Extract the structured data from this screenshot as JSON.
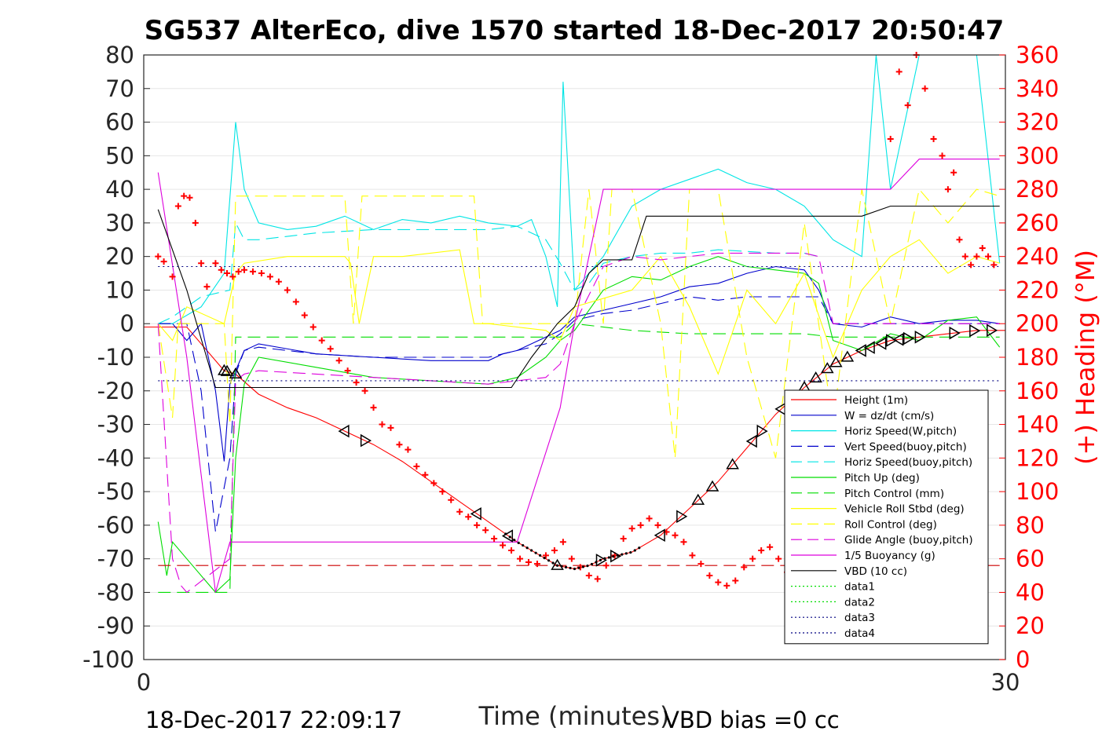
{
  "chart_data": {
    "type": "line",
    "title": "SG537 AlterEco, dive 1570 started 18-Dec-2017 20:50:47",
    "xlabel": "Time (minutes)",
    "ylabel_right": "(+) Heading (°M)",
    "xlim": [
      0,
      30
    ],
    "ylim": [
      -100,
      80
    ],
    "ylim_right": [
      0,
      360
    ],
    "x_ticks": [
      "0",
      "30"
    ],
    "y_ticks": [
      "80",
      "70",
      "60",
      "50",
      "40",
      "30",
      "20",
      "10",
      "0",
      "-10",
      "-20",
      "-30",
      "-40",
      "-50",
      "-60",
      "-70",
      "-80",
      "-90",
      "-100"
    ],
    "y_ticks_right": [
      "360",
      "340",
      "320",
      "300",
      "280",
      "260",
      "240",
      "220",
      "200",
      "180",
      "160",
      "140",
      "120",
      "100",
      "80",
      "60",
      "40",
      "20",
      "0"
    ],
    "grid": true,
    "legend_position": "bottom-right",
    "footer_left": "18-Dec-2017 22:09:17",
    "footer_right": "VBD bias =0 cc",
    "colors": {
      "height": "#ff0000",
      "w": "#0000cc",
      "horiz_speed": "#00e5e5",
      "vert_speed": "#0000cc",
      "horiz_speed_buoy": "#00e5e5",
      "pitch_up": "#00dd00",
      "pitch_control": "#00dd00",
      "roll": "#ffff00",
      "roll_control": "#ffff00",
      "glide_angle": "#dd00dd",
      "buoyancy": "#dd00dd",
      "vbd": "#000000",
      "heading": "#ff0000"
    },
    "legend": [
      {
        "label": "Height (1m)",
        "color": "#ff0000",
        "dash": "solid"
      },
      {
        "label": "W = dz/dt (cm/s)",
        "color": "#0000cc",
        "dash": "solid"
      },
      {
        "label": "Horiz Speed(W,pitch)",
        "color": "#00e5e5",
        "dash": "solid"
      },
      {
        "label": "Vert Speed(buoy,pitch)",
        "color": "#0000cc",
        "dash": "dashed"
      },
      {
        "label": "Horiz Speed(buoy,pitch)",
        "color": "#00e5e5",
        "dash": "dashed"
      },
      {
        "label": "Pitch Up (deg)",
        "color": "#00dd00",
        "dash": "solid"
      },
      {
        "label": "Pitch Control (mm)",
        "color": "#00dd00",
        "dash": "dashed"
      },
      {
        "label": "Vehicle Roll Stbd (deg)",
        "color": "#ffff00",
        "dash": "solid"
      },
      {
        "label": "Roll Control (deg)",
        "color": "#ffff00",
        "dash": "dashed"
      },
      {
        "label": "Glide Angle (buoy,pitch)",
        "color": "#dd00dd",
        "dash": "dashed"
      },
      {
        "label": "1/5 Buoyancy (g)",
        "color": "#dd00dd",
        "dash": "solid"
      },
      {
        "label": "VBD (10 cc)",
        "color": "#000000",
        "dash": "solid"
      },
      {
        "label": "data1",
        "color": "#00dd00",
        "dash": "dotted"
      },
      {
        "label": "data2",
        "color": "#00dd00",
        "dash": "dotted"
      },
      {
        "label": "data3",
        "color": "#000080",
        "dash": "dotted"
      },
      {
        "label": "data4",
        "color": "#000080",
        "dash": "dotted"
      }
    ],
    "series": [
      {
        "key": "height",
        "style": "solid",
        "color": "#ff0000",
        "x": [
          0,
          1.5,
          2.8,
          3.2,
          4,
          5,
          6,
          7,
          8,
          9,
          10,
          11,
          12,
          13,
          14,
          14.4,
          15,
          15.5,
          16,
          17,
          18,
          19,
          20,
          21,
          22,
          23,
          24,
          25,
          26,
          27,
          28,
          29,
          30
        ],
        "y": [
          -1,
          -1,
          -14,
          -15,
          -21,
          -25,
          -28,
          -32,
          -36,
          -41,
          -47,
          -53,
          -59,
          -65,
          -70,
          -72,
          -73,
          -72,
          -70,
          -68,
          -63,
          -55,
          -47,
          -37,
          -27,
          -19,
          -12,
          -8,
          -5,
          -4,
          -3,
          -2,
          -2
        ]
      },
      {
        "key": "w",
        "style": "solid",
        "color": "#0000cc",
        "x": [
          0.5,
          1,
          1.5,
          2,
          2.5,
          2.8,
          3,
          3.2,
          3.5,
          4,
          6,
          8,
          10,
          12,
          12.5,
          13,
          14.5,
          15,
          16,
          17,
          18,
          19,
          20,
          21,
          22,
          23,
          23.5,
          24,
          25,
          26,
          27,
          28,
          29,
          29.8
        ],
        "y": [
          0,
          0,
          -5,
          0,
          -20,
          -41,
          -18,
          -14,
          -8,
          -6,
          -9,
          -10,
          -11,
          -11,
          -9,
          -8,
          -2,
          2,
          4,
          6,
          8,
          11,
          12,
          15,
          17,
          16,
          10,
          0,
          -1,
          2,
          0,
          1,
          1,
          0
        ]
      },
      {
        "key": "horiz_speed",
        "style": "solid",
        "color": "#00e5e5",
        "x": [
          0.5,
          1,
          2,
          2.8,
          3.2,
          3.5,
          4,
          5,
          6,
          7,
          8,
          9,
          10,
          11,
          12,
          13,
          13.5,
          14,
          14.4,
          14.6,
          15,
          15.5,
          16,
          17,
          18,
          19,
          20,
          21,
          22,
          23,
          23.5,
          24,
          25,
          25.5,
          26,
          27,
          28,
          29,
          29.8
        ],
        "y": [
          0,
          0,
          5,
          15,
          60,
          40,
          30,
          28,
          29,
          32,
          28,
          31,
          30,
          32,
          30,
          29,
          31,
          20,
          5,
          72,
          10,
          15,
          20,
          35,
          40,
          43,
          46,
          42,
          40,
          35,
          30,
          25,
          20,
          80,
          40,
          80,
          80,
          80,
          18
        ]
      },
      {
        "key": "vert_speed",
        "style": "dashed",
        "color": "#0000cc",
        "x": [
          0.5,
          1.5,
          2,
          2.5,
          3,
          3.2,
          3.5,
          4,
          6,
          8,
          10,
          12,
          13,
          14,
          14.5,
          15,
          16,
          17,
          18,
          19,
          20,
          21,
          23,
          23.5,
          24,
          29.8
        ],
        "y": [
          0,
          0,
          -20,
          -62,
          -40,
          -15,
          -8,
          -7,
          -9,
          -10,
          -10,
          -10,
          -8,
          -6,
          -3,
          1,
          3,
          4,
          6,
          8,
          7,
          8,
          8,
          8,
          0,
          0
        ]
      },
      {
        "key": "horiz_speed_buoy",
        "style": "dashed",
        "color": "#00e5e5",
        "x": [
          0.5,
          1,
          2,
          3,
          3.2,
          3.5,
          4,
          6,
          8,
          10,
          12,
          13,
          14,
          14.5,
          15,
          15.5,
          16,
          17,
          18,
          19,
          20,
          22,
          23,
          23.5
        ],
        "y": [
          0,
          2,
          8,
          10,
          30,
          25,
          25,
          27,
          28,
          28,
          28,
          29,
          25,
          18,
          10,
          12,
          18,
          20,
          21,
          21,
          22,
          21,
          21,
          20
        ]
      },
      {
        "key": "pitch_up",
        "style": "solid",
        "color": "#00dd00",
        "x": [
          0.5,
          0.8,
          1,
          1.5,
          2,
          2.5,
          3,
          3.2,
          3.5,
          4,
          6,
          8,
          10,
          12,
          13,
          14,
          14.5,
          15,
          16,
          17,
          18,
          19,
          20,
          21,
          22,
          23,
          23.5,
          24,
          25,
          26,
          27,
          28,
          29,
          29.8
        ],
        "y": [
          -59,
          -75,
          -65,
          -70,
          -75,
          -80,
          -76,
          -40,
          -18,
          -10,
          -13,
          -16,
          -17,
          -18,
          -16,
          -10,
          -5,
          -2,
          10,
          14,
          13,
          17,
          20,
          17,
          16,
          15,
          12,
          -5,
          -8,
          -3,
          -5,
          1,
          2,
          -7
        ]
      },
      {
        "key": "pitch_control",
        "style": "dashed",
        "color": "#00dd00",
        "x": [
          0.5,
          3,
          3.2,
          8,
          14,
          14.5,
          15,
          17,
          19,
          21,
          23,
          24,
          29.8
        ],
        "y": [
          -80,
          -80,
          -4,
          -4,
          -4,
          -4,
          0,
          -2,
          -3,
          -3,
          -3,
          -4,
          -4
        ]
      },
      {
        "key": "roll",
        "style": "solid",
        "color": "#ffff00",
        "x": [
          0.5,
          1,
          1.5,
          2.8,
          3.2,
          3.5,
          5,
          7,
          7.2,
          7.5,
          8,
          9,
          11,
          11.5,
          12,
          14,
          14.5,
          15,
          17,
          18,
          19,
          20,
          21,
          22,
          23,
          24,
          25,
          26,
          27,
          28,
          29,
          29.8
        ],
        "y": [
          0,
          -5,
          5,
          0,
          15,
          18,
          20,
          20,
          18,
          0,
          20,
          20,
          22,
          0,
          0,
          -2,
          -5,
          5,
          10,
          20,
          5,
          -15,
          10,
          0,
          15,
          -10,
          10,
          20,
          25,
          15,
          20,
          18
        ]
      },
      {
        "key": "roll_control",
        "style": "dashed",
        "color": "#ffff00",
        "x": [
          0.5,
          1,
          1.2,
          2.8,
          3,
          3.2,
          7,
          7.3,
          7.6,
          8,
          11.5,
          11.8,
          12,
          15,
          15.5,
          16,
          16.3,
          17,
          18,
          18.5,
          19,
          20,
          21,
          22,
          23,
          24,
          25,
          26,
          27,
          28,
          29,
          29.8
        ],
        "y": [
          0,
          -28,
          0,
          0,
          -30,
          38,
          38,
          0,
          38,
          38,
          38,
          0,
          0,
          0,
          40,
          0,
          40,
          40,
          0,
          -40,
          40,
          40,
          -10,
          -40,
          30,
          -30,
          40,
          0,
          40,
          30,
          40,
          38
        ]
      },
      {
        "key": "glide_angle",
        "style": "dashed",
        "color": "#dd00dd",
        "x": [
          0.5,
          1,
          1.3,
          1.5,
          3,
          3.2,
          3.5,
          4,
          6,
          8,
          10,
          12,
          13,
          14,
          14.5,
          15,
          16,
          17,
          18,
          19,
          20,
          22,
          23,
          23.5,
          24,
          29.8
        ],
        "y": [
          0,
          -70,
          -78,
          -80,
          -70,
          -17,
          -15,
          -14,
          -15,
          -16,
          -17,
          -18,
          -17,
          -16,
          -12,
          0,
          17,
          20,
          19,
          20,
          21,
          21,
          21,
          20,
          0,
          0
        ]
      },
      {
        "key": "buoyancy",
        "style": "solid",
        "color": "#dd00dd",
        "x": [
          0.5,
          1.5,
          2.5,
          3,
          3.2,
          5,
          10,
          13,
          14.5,
          15,
          16,
          16.5,
          17,
          18,
          20,
          22,
          24,
          25,
          26,
          27,
          28,
          29,
          29.8
        ],
        "y": [
          45,
          -10,
          -80,
          -65,
          -65,
          -65,
          -65,
          -65,
          -25,
          0,
          40,
          40,
          40,
          40,
          40,
          40,
          40,
          40,
          40,
          49,
          49,
          49,
          49
        ]
      },
      {
        "key": "vbd",
        "style": "solid",
        "color": "#000000",
        "x": [
          0.5,
          1.5,
          2.5,
          3,
          4,
          6,
          8,
          10,
          12,
          12.8,
          13.5,
          14.4,
          15,
          15.5,
          16,
          17,
          17.5,
          18,
          19,
          20,
          22,
          24,
          25,
          26,
          27,
          28,
          29,
          29.8
        ],
        "y": [
          34,
          10,
          -19,
          -19,
          -19,
          -19,
          -19,
          -19,
          -19,
          -19,
          -10,
          0,
          5,
          15,
          19,
          19,
          32,
          32,
          32,
          32,
          32,
          32,
          32,
          35,
          35,
          35,
          35,
          35
        ]
      },
      {
        "key": "data3",
        "style": "dotted",
        "color": "#000080",
        "x": [
          0.5,
          29.8
        ],
        "y": [
          17,
          17
        ]
      },
      {
        "key": "data4",
        "style": "dotted",
        "color": "#000080",
        "x": [
          0.5,
          29.8
        ],
        "y": [
          -17,
          -17
        ]
      },
      {
        "key": "height_dashed",
        "style": "dashed",
        "color": "#cc0000",
        "x": [
          0.5,
          29.8
        ],
        "y": [
          -72,
          -72
        ]
      }
    ],
    "heading_points": {
      "x": [
        0.5,
        0.7,
        1,
        1.2,
        1.4,
        1.6,
        1.8,
        2,
        2.2,
        2.5,
        2.7,
        2.9,
        3.1,
        3.3,
        3.5,
        3.8,
        4.1,
        4.4,
        4.7,
        5,
        5.3,
        5.6,
        5.9,
        6.2,
        6.5,
        6.8,
        7.1,
        7.4,
        7.7,
        8,
        8.3,
        8.6,
        8.9,
        9.2,
        9.5,
        9.8,
        10.1,
        10.4,
        10.7,
        11,
        11.3,
        11.6,
        11.9,
        12.2,
        12.5,
        12.8,
        13.1,
        13.4,
        13.7,
        14,
        14.3,
        14.6,
        14.9,
        15.2,
        15.5,
        15.8,
        16.1,
        16.4,
        16.7,
        17,
        17.3,
        17.6,
        17.9,
        18.2,
        18.5,
        18.8,
        19.1,
        19.4,
        19.7,
        20,
        20.3,
        20.6,
        20.9,
        21.2,
        21.5,
        21.8,
        22.1,
        22.4,
        22.7,
        23,
        23.3,
        23.6,
        23.9,
        24.2,
        24.5,
        24.8,
        25.1,
        25.4,
        25.7,
        26,
        26.3,
        26.6,
        26.9,
        27.2,
        27.5,
        27.8,
        28,
        28.2,
        28.4,
        28.6,
        28.8,
        29,
        29.2,
        29.4,
        29.6
      ],
      "y": [
        240,
        237,
        228,
        270,
        276,
        275,
        260,
        236,
        222,
        236,
        232,
        230,
        228,
        231,
        232,
        231,
        230,
        228,
        225,
        220,
        213,
        205,
        198,
        190,
        185,
        178,
        172,
        165,
        160,
        150,
        140,
        138,
        128,
        125,
        115,
        110,
        105,
        100,
        95,
        88,
        85,
        80,
        77,
        72,
        68,
        65,
        60,
        58,
        57,
        62,
        65,
        70,
        60,
        55,
        50,
        48,
        56,
        62,
        72,
        78,
        80,
        84,
        80,
        76,
        74,
        70,
        62,
        57,
        50,
        46,
        44,
        47,
        55,
        60,
        65,
        67,
        60,
        52,
        48,
        45,
        50,
        62,
        68,
        72,
        75,
        80,
        70,
        62,
        47,
        310,
        350,
        330,
        360,
        340,
        310,
        300,
        280,
        290,
        250,
        240,
        235,
        240,
        245,
        240,
        235
      ]
    }
  }
}
